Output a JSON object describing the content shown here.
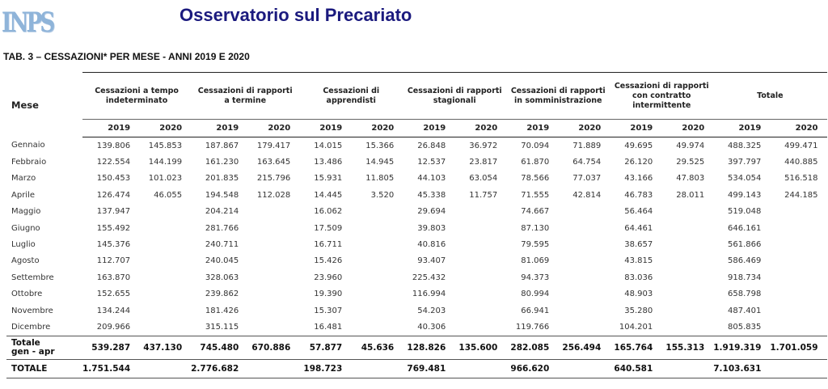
{
  "header": {
    "logo_text": "INPS",
    "title": "Osservatorio sul Precariato",
    "table_title": "TAB. 3 – CESSAZIONI* PER MESE - ANNI 2019 E 2020"
  },
  "table": {
    "month_header": "Mese",
    "groups": [
      "Cessazioni a tempo indeterminato",
      "Cessazioni di rapporti a termine",
      "Cessazioni di apprendisti",
      "Cessazioni di rapporti stagionali",
      "Cessazioni di rapporti in somministrazione",
      "Cessazioni di rapporti con contratto intermittente",
      "Totale"
    ],
    "years": [
      "2019",
      "2020"
    ],
    "rows": [
      {
        "month": "Gennaio",
        "v": [
          "139.806",
          "145.853",
          "187.867",
          "179.417",
          "14.015",
          "15.366",
          "26.848",
          "36.972",
          "70.094",
          "71.889",
          "49.695",
          "49.974",
          "488.325",
          "499.471"
        ]
      },
      {
        "month": "Febbraio",
        "v": [
          "122.554",
          "144.199",
          "161.230",
          "163.645",
          "13.486",
          "14.945",
          "12.537",
          "23.817",
          "61.870",
          "64.754",
          "26.120",
          "29.525",
          "397.797",
          "440.885"
        ]
      },
      {
        "month": "Marzo",
        "v": [
          "150.453",
          "101.023",
          "201.835",
          "215.796",
          "15.931",
          "11.805",
          "44.103",
          "63.054",
          "78.566",
          "77.037",
          "43.166",
          "47.803",
          "534.054",
          "516.518"
        ]
      },
      {
        "month": "Aprile",
        "v": [
          "126.474",
          "46.055",
          "194.548",
          "112.028",
          "14.445",
          "3.520",
          "45.338",
          "11.757",
          "71.555",
          "42.814",
          "46.783",
          "28.011",
          "499.143",
          "244.185"
        ]
      },
      {
        "month": "Maggio",
        "v": [
          "137.947",
          "",
          "204.214",
          "",
          "16.062",
          "",
          "29.694",
          "",
          "74.667",
          "",
          "56.464",
          "",
          "519.048",
          ""
        ]
      },
      {
        "month": "Giugno",
        "v": [
          "155.492",
          "",
          "281.766",
          "",
          "17.509",
          "",
          "39.803",
          "",
          "87.130",
          "",
          "64.461",
          "",
          "646.161",
          ""
        ]
      },
      {
        "month": "Luglio",
        "v": [
          "145.376",
          "",
          "240.711",
          "",
          "16.711",
          "",
          "40.816",
          "",
          "79.595",
          "",
          "38.657",
          "",
          "561.866",
          ""
        ]
      },
      {
        "month": "Agosto",
        "v": [
          "112.707",
          "",
          "240.045",
          "",
          "15.426",
          "",
          "93.407",
          "",
          "81.069",
          "",
          "43.815",
          "",
          "586.469",
          ""
        ]
      },
      {
        "month": "Settembre",
        "v": [
          "163.870",
          "",
          "328.063",
          "",
          "23.960",
          "",
          "225.432",
          "",
          "94.373",
          "",
          "83.036",
          "",
          "918.734",
          ""
        ]
      },
      {
        "month": "Ottobre",
        "v": [
          "152.655",
          "",
          "239.862",
          "",
          "19.390",
          "",
          "116.994",
          "",
          "80.994",
          "",
          "48.903",
          "",
          "658.798",
          ""
        ]
      },
      {
        "month": "Novembre",
        "v": [
          "134.244",
          "",
          "181.426",
          "",
          "15.307",
          "",
          "54.203",
          "",
          "66.941",
          "",
          "35.280",
          "",
          "487.401",
          ""
        ]
      },
      {
        "month": "Dicembre",
        "v": [
          "209.966",
          "",
          "315.115",
          "",
          "16.481",
          "",
          "40.306",
          "",
          "119.766",
          "",
          "104.201",
          "",
          "805.835",
          ""
        ]
      }
    ],
    "partial_total": {
      "label_1": "Totale",
      "label_2": "gen - apr",
      "v": [
        "539.287",
        "437.130",
        "745.480",
        "670.886",
        "57.877",
        "45.636",
        "128.826",
        "135.600",
        "282.085",
        "256.494",
        "165.764",
        "155.313",
        "1.919.319",
        "1.701.059"
      ]
    },
    "grand_total": {
      "label": "TOTALE",
      "v": [
        "1.751.544",
        "",
        "2.776.682",
        "",
        "198.723",
        "",
        "769.481",
        "",
        "966.620",
        "",
        "640.581",
        "",
        "7.103.631",
        ""
      ]
    }
  }
}
